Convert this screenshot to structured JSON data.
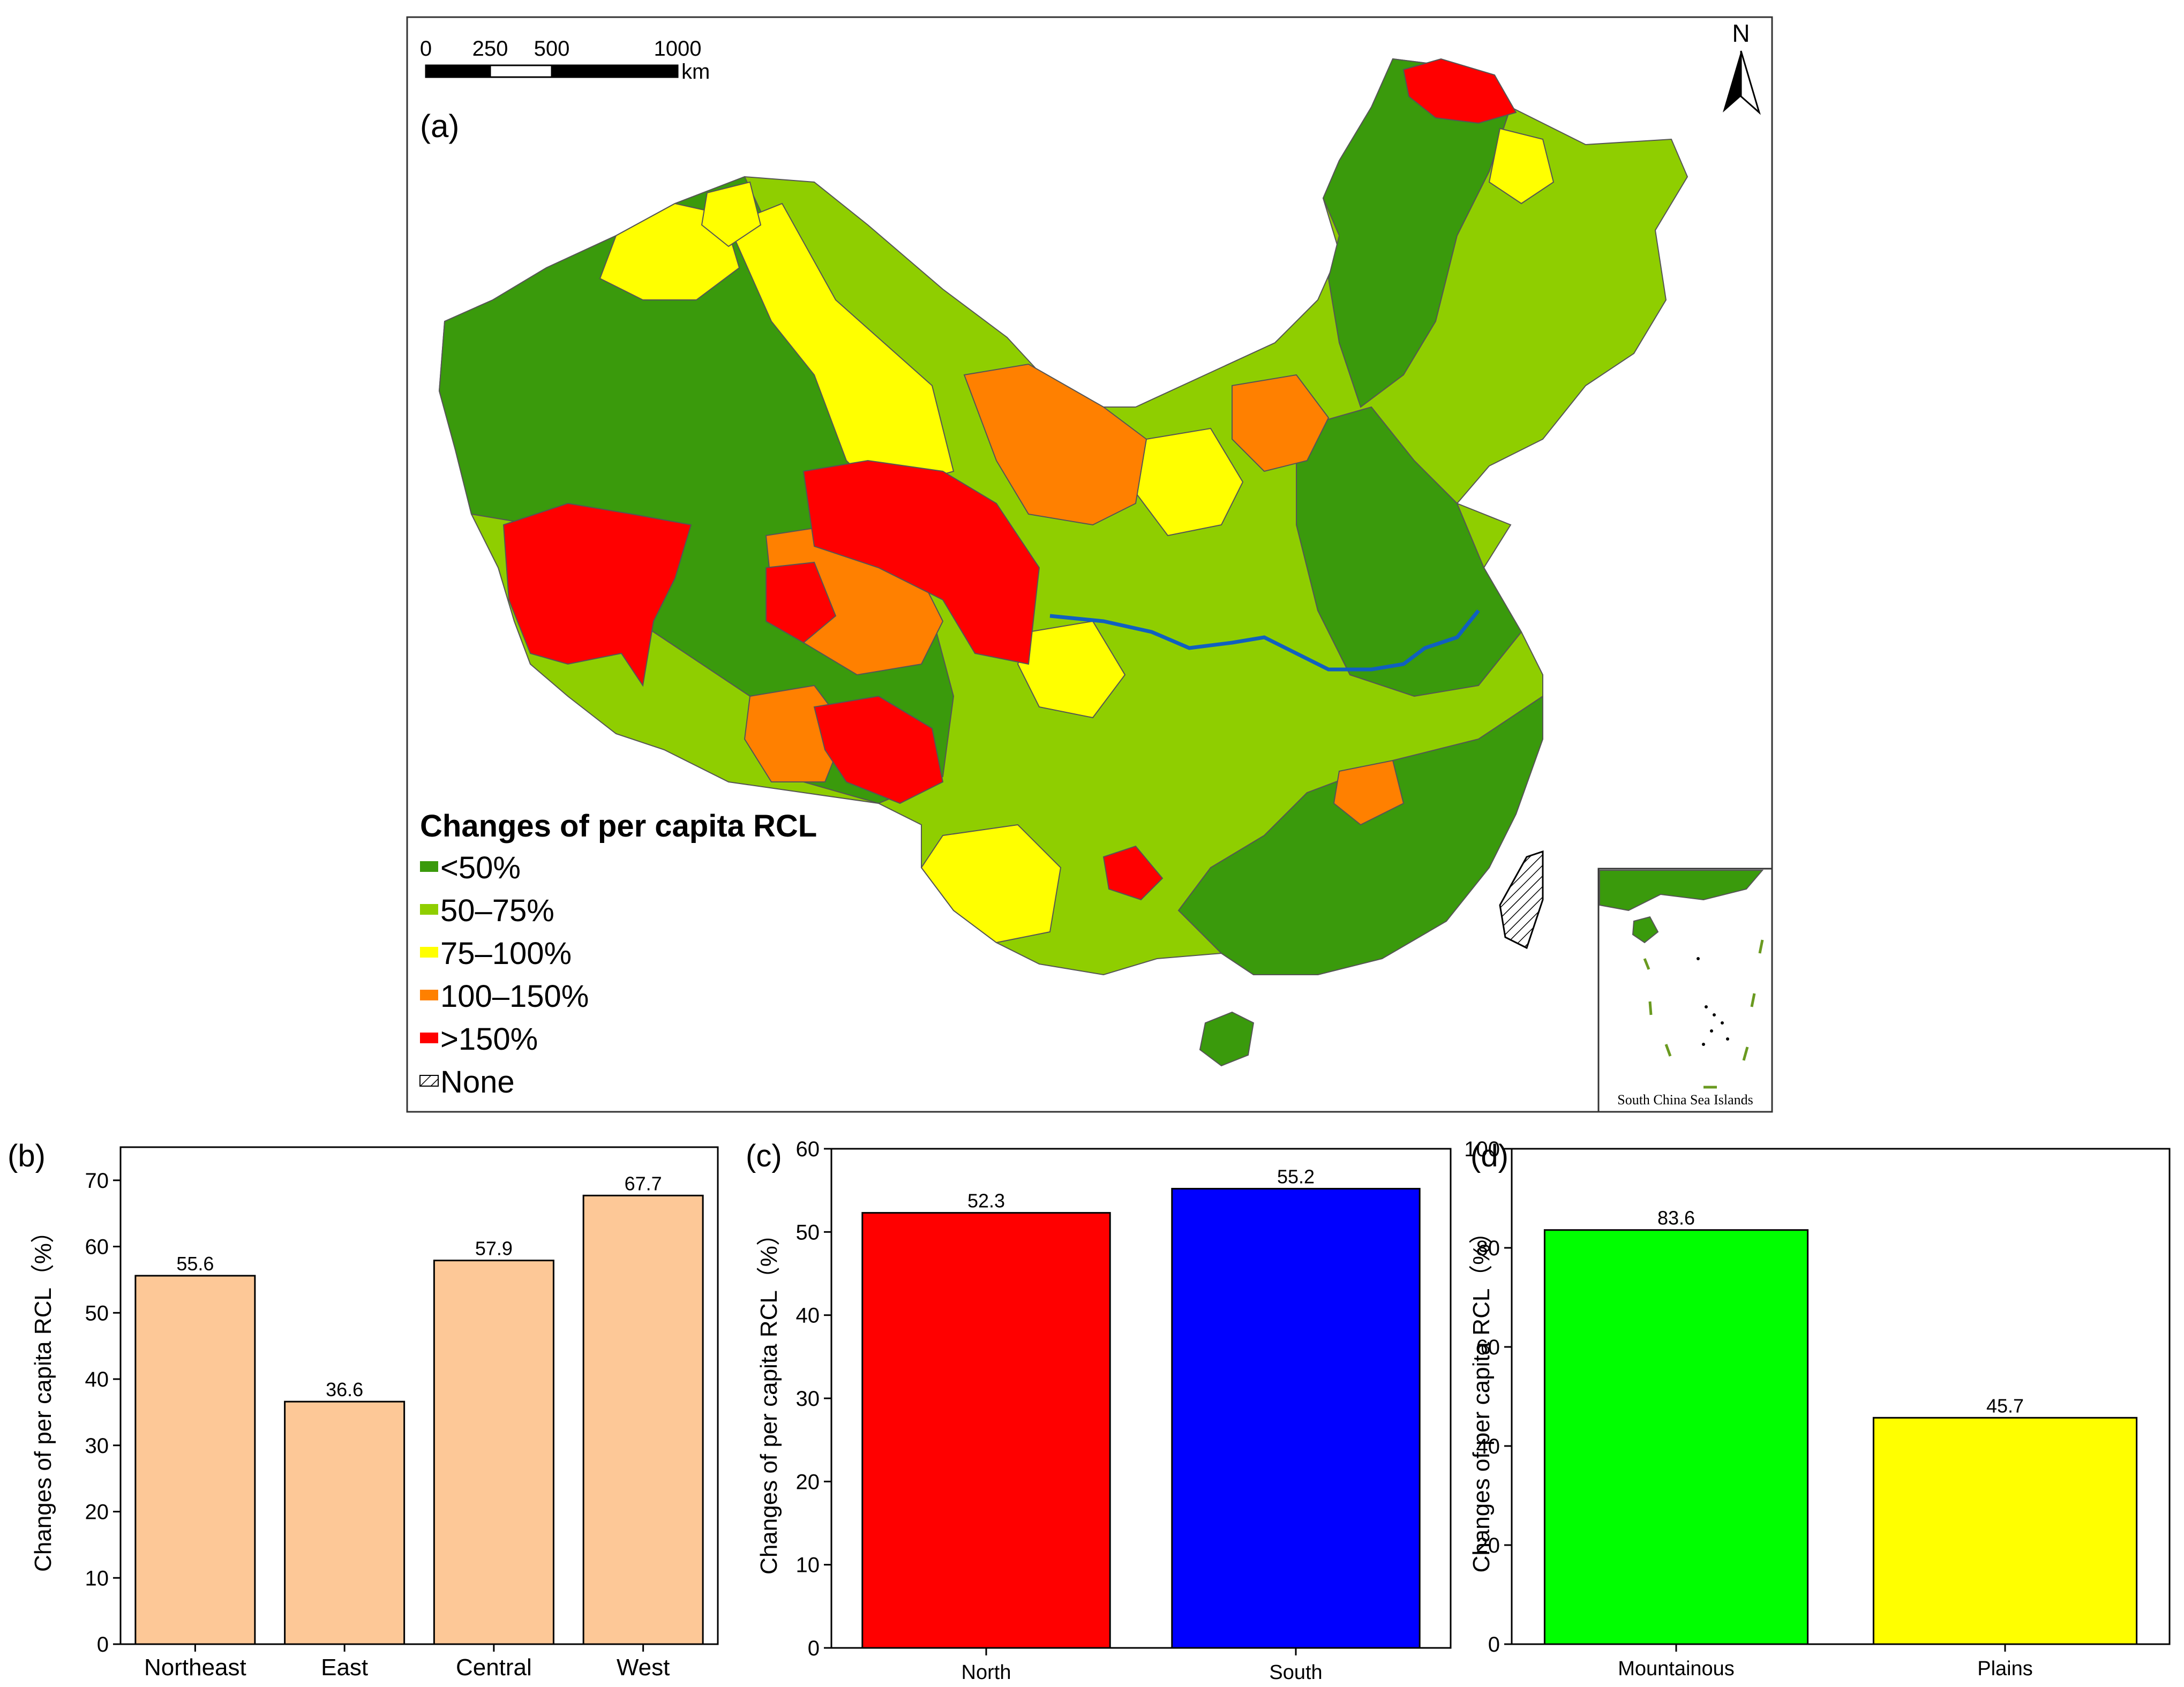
{
  "map": {
    "panel_label": "(a)",
    "north_label": "N",
    "scale_bar": {
      "ticks": [
        "0",
        "250",
        "500",
        "1000"
      ],
      "unit": "km"
    },
    "legend": {
      "title": "Changes of per capita RCL",
      "items": [
        {
          "label": "<50%",
          "color": "#3a9a0c"
        },
        {
          "label": "50–75%",
          "color": "#8fce00"
        },
        {
          "label": "75–100%",
          "color": "#ffff00"
        },
        {
          "label": "100–150%",
          "color": "#ff8000"
        },
        {
          "label": ">150%",
          "color": "#ff0000"
        },
        {
          "label": "None",
          "color": "hatched"
        }
      ]
    },
    "inset_label": "South China Sea Islands"
  },
  "chart_data": [
    {
      "panel": "(b)",
      "type": "bar",
      "categories": [
        "Northeast",
        "East",
        "Central",
        "West"
      ],
      "values": [
        55.6,
        36.6,
        57.9,
        67.7
      ],
      "value_labels": [
        "55.6",
        "36.6",
        "57.9",
        "67.7"
      ],
      "colors": [
        "#fdc897",
        "#fdc897",
        "#fdc897",
        "#fdc897"
      ],
      "ylabel": "Changes of per capita RCL（%）",
      "ylim": [
        0,
        75
      ],
      "yticks": [
        0,
        10,
        20,
        30,
        40,
        50,
        60,
        70
      ],
      "title": "",
      "xlabel": ""
    },
    {
      "panel": "(c)",
      "type": "bar",
      "categories": [
        "North",
        "South"
      ],
      "values": [
        52.3,
        55.2
      ],
      "value_labels": [
        "52.3",
        "55.2"
      ],
      "colors": [
        "#ff0000",
        "#0000ff"
      ],
      "ylabel": "Changes of per capita RCL（%）",
      "ylim": [
        0,
        60
      ],
      "yticks": [
        0,
        10,
        20,
        30,
        40,
        50,
        60
      ],
      "title": "",
      "xlabel": ""
    },
    {
      "panel": "(d)",
      "type": "bar",
      "categories": [
        "Mountainous",
        "Plains"
      ],
      "values": [
        83.6,
        45.7
      ],
      "value_labels": [
        "83.6",
        "45.7"
      ],
      "colors": [
        "#00ff00",
        "#ffff00"
      ],
      "ylabel": "Changes of per capita RCL（%）",
      "ylim": [
        0,
        100
      ],
      "yticks": [
        0,
        20,
        40,
        60,
        80,
        100
      ],
      "title": "",
      "xlabel": ""
    }
  ]
}
